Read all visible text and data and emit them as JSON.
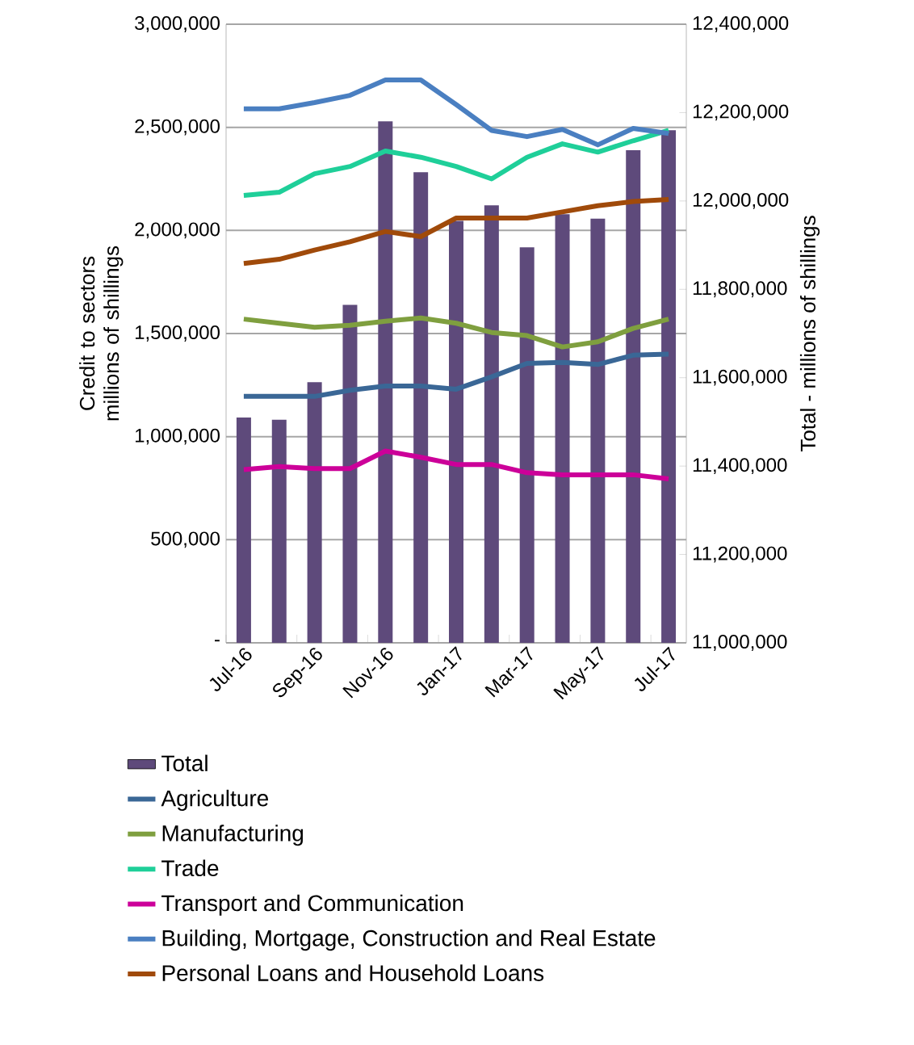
{
  "chart_data": {
    "type": "line",
    "categories": [
      "Jul-16",
      null,
      "Sep-16",
      null,
      "Nov-16",
      null,
      "Jan-17",
      null,
      "Mar-17",
      null,
      "May-17",
      null,
      "Jul-17"
    ],
    "series": [
      {
        "name": "Total",
        "type": "bar",
        "axis": "y2",
        "color": "#5e4a7b",
        "values": [
          11510000,
          11505000,
          11590000,
          11765000,
          12180000,
          12065000,
          11955000,
          11990000,
          11895000,
          11970000,
          11960000,
          12115000,
          12160000
        ]
      },
      {
        "name": "Agriculture",
        "color": "#3a6796",
        "values": [
          1195000,
          1195000,
          1195000,
          1225000,
          1245000,
          1245000,
          1230000,
          1290000,
          1355000,
          1360000,
          1350000,
          1395000,
          1400000
        ]
      },
      {
        "name": "Manufacturing",
        "color": "#7f9f3f",
        "values": [
          1570000,
          1550000,
          1530000,
          1540000,
          1560000,
          1575000,
          1550000,
          1505000,
          1490000,
          1435000,
          1460000,
          1525000,
          1570000
        ]
      },
      {
        "name": "Trade",
        "color": "#1fcf99",
        "values": [
          2170000,
          2185000,
          2275000,
          2310000,
          2385000,
          2355000,
          2310000,
          2250000,
          2355000,
          2420000,
          2380000,
          2435000,
          2485000
        ]
      },
      {
        "name": "Transport and Communication",
        "color": "#cc0099",
        "values": [
          840000,
          855000,
          845000,
          845000,
          930000,
          900000,
          865000,
          865000,
          825000,
          815000,
          815000,
          815000,
          795000
        ]
      },
      {
        "name": "Building, Mortgage, Construction and Real Estate",
        "color": "#4a7fc1",
        "values": [
          2590000,
          2590000,
          2620000,
          2655000,
          2730000,
          2730000,
          2610000,
          2485000,
          2455000,
          2490000,
          2415000,
          2495000,
          2470000
        ]
      },
      {
        "name": "Personal Loans and Household Loans",
        "color": "#a04a0a",
        "values": [
          1840000,
          1860000,
          1905000,
          1945000,
          1995000,
          1970000,
          2060000,
          2060000,
          2060000,
          2090000,
          2120000,
          2140000,
          2150000
        ]
      }
    ],
    "ylabel": "Credit to sectors millions of shillings",
    "y2label": "Total - millions of shillings",
    "ylim": [
      0,
      3000000
    ],
    "yticks": [
      {
        "value": 0,
        "label": "-"
      },
      {
        "value": 500000,
        "label": "500,000"
      },
      {
        "value": 1000000,
        "label": "1,000,000"
      },
      {
        "value": 1500000,
        "label": "1,500,000"
      },
      {
        "value": 2000000,
        "label": "2,000,000"
      },
      {
        "value": 2500000,
        "label": "2,500,000"
      },
      {
        "value": 3000000,
        "label": "3,000,000"
      }
    ],
    "y2lim": [
      11000000,
      12400000
    ],
    "y2ticks": [
      {
        "value": 11000000,
        "label": "11,000,000"
      },
      {
        "value": 11200000,
        "label": "11,200,000"
      },
      {
        "value": 11400000,
        "label": "11,400,000"
      },
      {
        "value": 11600000,
        "label": "11,600,000"
      },
      {
        "value": 11800000,
        "label": "11,800,000"
      },
      {
        "value": 12000000,
        "label": "12,000,000"
      },
      {
        "value": 12200000,
        "label": "12,200,000"
      },
      {
        "value": 12400000,
        "label": "12,400,000"
      }
    ],
    "grid": "y",
    "legend": "bottom",
    "marker": "none",
    "line_style": "solid"
  }
}
